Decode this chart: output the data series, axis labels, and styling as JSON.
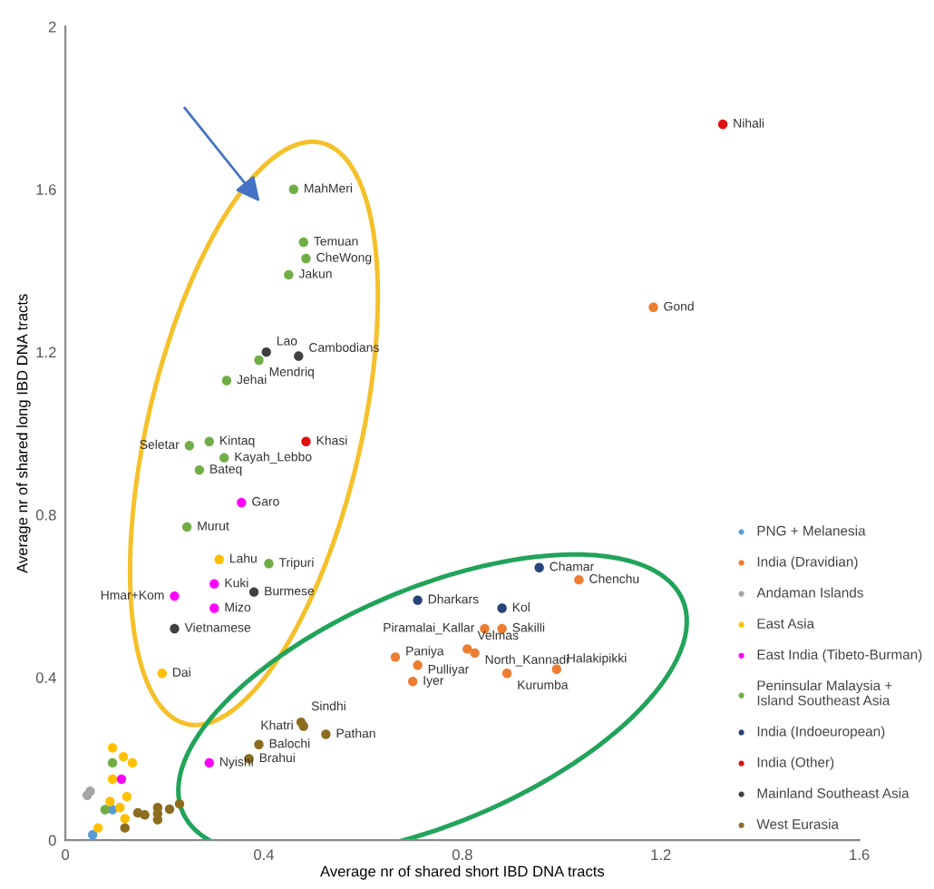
{
  "chart_data": {
    "type": "scatter",
    "xlabel": "Average nr of shared short IBD DNA tracts",
    "ylabel": "Average nr of shared long IBD DNA tracts",
    "xlim": [
      0,
      1.6
    ],
    "ylim": [
      0,
      2
    ],
    "xticks": [
      0,
      0.4,
      0.8,
      1.2,
      1.6
    ],
    "yticks": [
      0,
      0.4,
      0.8,
      1.2,
      1.6,
      2
    ],
    "grid": false,
    "legend": "bottom right",
    "marker": "circle",
    "series": [
      {
        "name": "PNG + Melanesia",
        "color": "#5b9bd5",
        "x": [
          0.095,
          0.055
        ],
        "values": [
          0.075,
          0.013
        ]
      },
      {
        "name": "India (Dravidian)",
        "color": "#ed7d31",
        "x": [
          1.035,
          0.845,
          0.88,
          0.81,
          0.825,
          0.665,
          0.71,
          0.7,
          0.89,
          0.99,
          1.185
        ],
        "values": [
          0.64,
          0.52,
          0.52,
          0.47,
          0.46,
          0.45,
          0.43,
          0.39,
          0.41,
          0.42,
          1.31
        ]
      },
      {
        "name": "Andaman Islands",
        "color": "#a5a5a5",
        "x": [
          0.044,
          0.05
        ],
        "values": [
          0.11,
          0.12
        ]
      },
      {
        "name": "East Asia",
        "color": "#ffc000",
        "x": [
          0.31,
          0.195,
          0.095,
          0.117,
          0.135,
          0.095,
          0.124,
          0.09,
          0.11,
          0.12,
          0.066
        ],
        "values": [
          0.69,
          0.41,
          0.227,
          0.205,
          0.19,
          0.15,
          0.107,
          0.095,
          0.08,
          0.053,
          0.03
        ]
      },
      {
        "name": "East India (Tibeto-Burman)",
        "color": "#ff00ff",
        "x": [
          0.355,
          0.3,
          0.22,
          0.3,
          0.29,
          0.113
        ],
        "values": [
          0.83,
          0.63,
          0.6,
          0.57,
          0.19,
          0.15
        ]
      },
      {
        "name": "Peninsular Malaysia +\nIsland Southeast Asia",
        "color": "#70ad47",
        "x": [
          0.46,
          0.48,
          0.485,
          0.45,
          0.39,
          0.325,
          0.25,
          0.29,
          0.32,
          0.27,
          0.245,
          0.41,
          0.095,
          0.08
        ],
        "values": [
          1.6,
          1.47,
          1.43,
          1.39,
          1.18,
          1.13,
          0.97,
          0.98,
          0.94,
          0.91,
          0.77,
          0.68,
          0.19,
          0.075
        ]
      },
      {
        "name": "India (Indoeuropean)",
        "color": "#264478",
        "x": [
          0.955,
          0.71,
          0.88
        ],
        "values": [
          0.67,
          0.59,
          0.57
        ]
      },
      {
        "name": "India (Other)",
        "color": "#e01010",
        "x": [
          0.485,
          1.325
        ],
        "values": [
          0.98,
          1.76
        ]
      },
      {
        "name": "Mainland Southeast Asia",
        "color": "#404040",
        "x": [
          0.405,
          0.47,
          0.38,
          0.22
        ],
        "values": [
          1.2,
          1.19,
          0.61,
          0.52
        ]
      },
      {
        "name": "West Eurasia",
        "color": "#8c6d1f",
        "x": [
          0.475,
          0.48,
          0.525,
          0.39,
          0.37,
          0.12,
          0.146,
          0.16,
          0.186,
          0.186,
          0.186,
          0.21,
          0.23
        ],
        "values": [
          0.29,
          0.28,
          0.26,
          0.235,
          0.2,
          0.03,
          0.067,
          0.062,
          0.08,
          0.065,
          0.05,
          0.076,
          0.089
        ]
      }
    ],
    "annotations": [
      {
        "text": "MahMeri",
        "x": 0.46,
        "y": 1.6
      },
      {
        "text": "Temuan",
        "x": 0.48,
        "y": 1.47
      },
      {
        "text": "CheWong",
        "x": 0.485,
        "y": 1.43
      },
      {
        "text": "Jakun",
        "x": 0.45,
        "y": 1.39
      },
      {
        "text": "Lao",
        "x": 0.405,
        "y": 1.2
      },
      {
        "text": "Cambodians",
        "x": 0.47,
        "y": 1.19
      },
      {
        "text": "Mendriq",
        "x": 0.39,
        "y": 1.18
      },
      {
        "text": "Jehai",
        "x": 0.325,
        "y": 1.13
      },
      {
        "text": "Khasi",
        "x": 0.485,
        "y": 0.98
      },
      {
        "text": "Seletar",
        "x": 0.25,
        "y": 0.97
      },
      {
        "text": "Kintaq",
        "x": 0.29,
        "y": 0.98
      },
      {
        "text": "Kayah_Lebbo",
        "x": 0.32,
        "y": 0.94
      },
      {
        "text": "Bateq",
        "x": 0.27,
        "y": 0.91
      },
      {
        "text": "Garo",
        "x": 0.355,
        "y": 0.83
      },
      {
        "text": "Murut",
        "x": 0.245,
        "y": 0.77
      },
      {
        "text": "Lahu",
        "x": 0.31,
        "y": 0.69
      },
      {
        "text": "Tripuri",
        "x": 0.41,
        "y": 0.68
      },
      {
        "text": "Kuki",
        "x": 0.3,
        "y": 0.63
      },
      {
        "text": "Burmese",
        "x": 0.38,
        "y": 0.61
      },
      {
        "text": "Hmar+Kom",
        "x": 0.22,
        "y": 0.6
      },
      {
        "text": "Mizo",
        "x": 0.3,
        "y": 0.57
      },
      {
        "text": "Vietnamese",
        "x": 0.22,
        "y": 0.52
      },
      {
        "text": "Dai",
        "x": 0.195,
        "y": 0.41
      },
      {
        "text": "Sindhi",
        "x": 0.475,
        "y": 0.29
      },
      {
        "text": "Khatri",
        "x": 0.48,
        "y": 0.28
      },
      {
        "text": "Pathan",
        "x": 0.525,
        "y": 0.26
      },
      {
        "text": "Balochi",
        "x": 0.39,
        "y": 0.235
      },
      {
        "text": "Brahui",
        "x": 0.37,
        "y": 0.2
      },
      {
        "text": "Nyishi",
        "x": 0.29,
        "y": 0.19
      },
      {
        "text": "Chamar",
        "x": 0.955,
        "y": 0.67
      },
      {
        "text": "Chenchu",
        "x": 1.035,
        "y": 0.64
      },
      {
        "text": "Dharkars",
        "x": 0.71,
        "y": 0.59
      },
      {
        "text": "Kol",
        "x": 0.88,
        "y": 0.57
      },
      {
        "text": "Piramalai_Kallar",
        "x": 0.845,
        "y": 0.52
      },
      {
        "text": "Sakilli",
        "x": 0.88,
        "y": 0.52
      },
      {
        "text": "Velmas",
        "x": 0.81,
        "y": 0.47
      },
      {
        "text": "North_Kannadi",
        "x": 0.825,
        "y": 0.46
      },
      {
        "text": "Paniya",
        "x": 0.665,
        "y": 0.45
      },
      {
        "text": "Pulliyar",
        "x": 0.71,
        "y": 0.43
      },
      {
        "text": "Iyer",
        "x": 0.7,
        "y": 0.39
      },
      {
        "text": "Kurumba",
        "x": 0.89,
        "y": 0.41
      },
      {
        "text": "Halakipikki",
        "x": 0.99,
        "y": 0.42
      },
      {
        "text": "Nihali",
        "x": 1.325,
        "y": 1.76
      },
      {
        "text": "Gond",
        "x": 1.185,
        "y": 1.31
      }
    ]
  }
}
